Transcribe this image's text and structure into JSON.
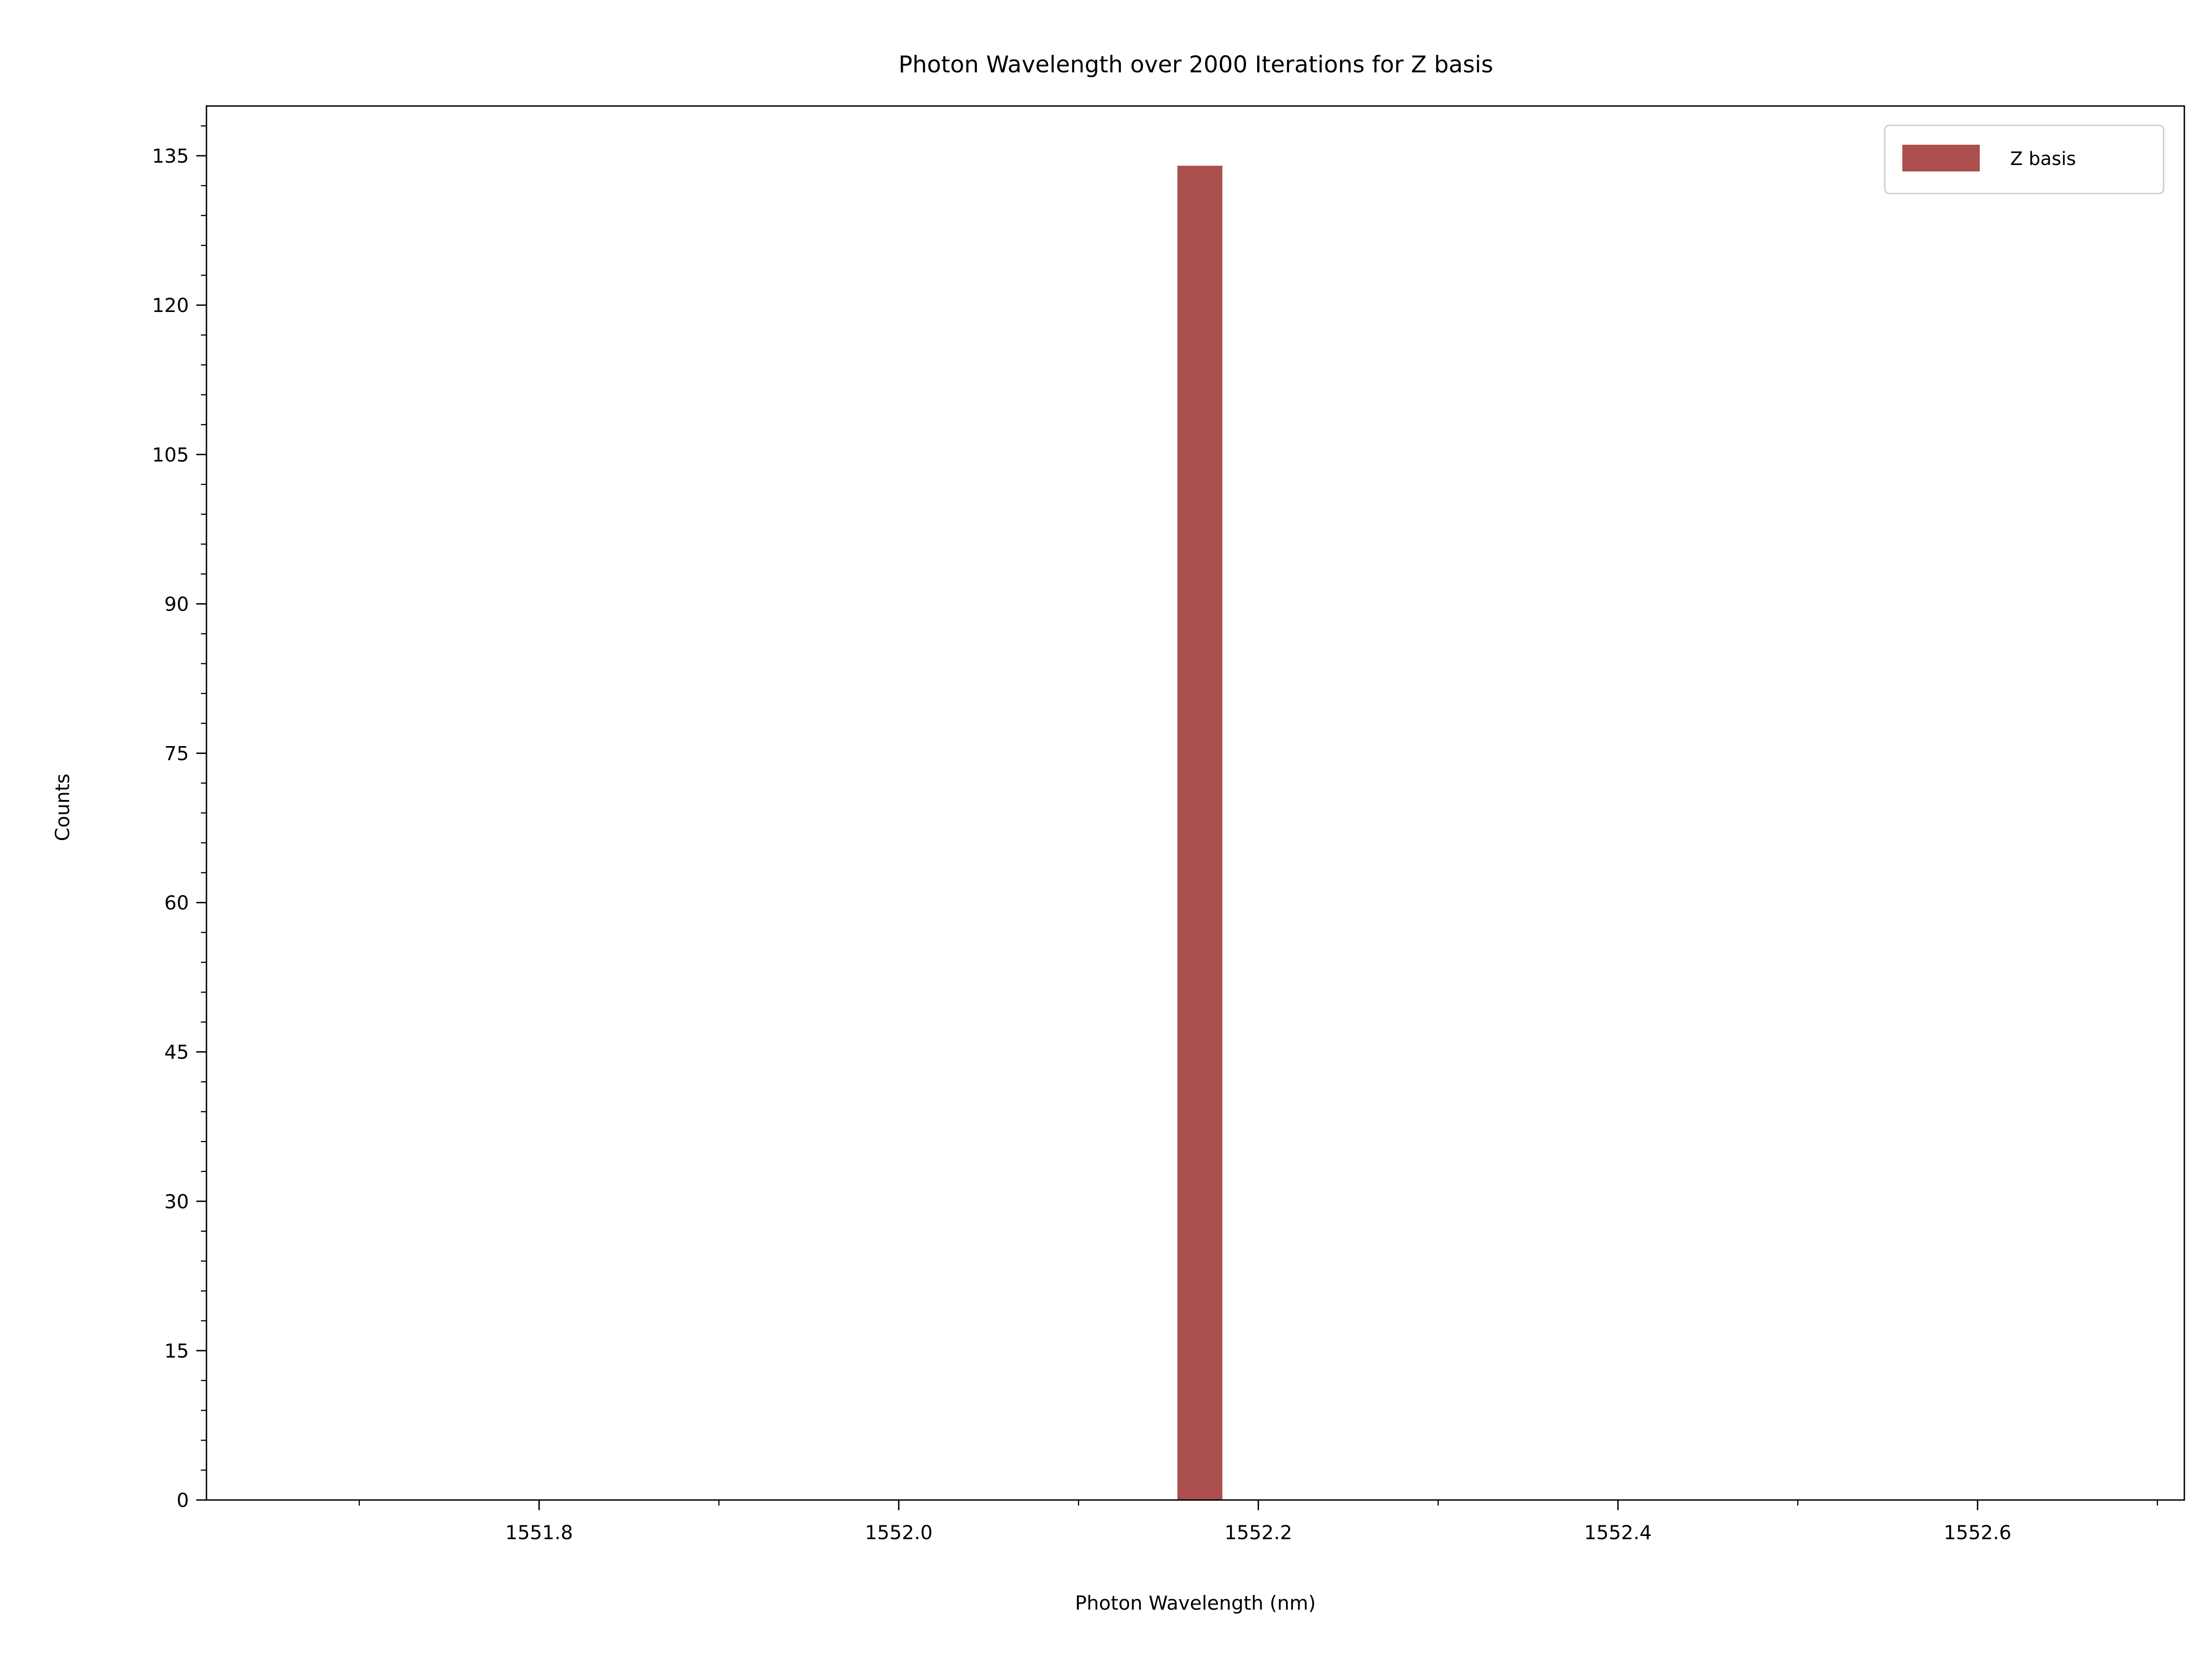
{
  "chart_data": {
    "type": "bar",
    "title": "Photon Wavelength over 2000 Iterations for Z basis",
    "xlabel": "Photon Wavelength (nm)",
    "ylabel": "Counts",
    "xlim": [
      1551.615,
      1552.715
    ],
    "ylim": [
      0,
      140
    ],
    "x_ticks": [
      1551.8,
      1552.0,
      1552.2,
      1552.4,
      1552.6
    ],
    "x_tick_labels": [
      "1551.8",
      "1552.0",
      "1552.2",
      "1552.4",
      "1552.6"
    ],
    "y_ticks": [
      0,
      15,
      30,
      45,
      60,
      75,
      90,
      105,
      120,
      135
    ],
    "y_tick_labels": [
      "0",
      "15",
      "30",
      "45",
      "60",
      "75",
      "90",
      "105",
      "120",
      "135"
    ],
    "series": [
      {
        "name": "Z basis",
        "color": "#ab4e4e",
        "bins": [
          {
            "x_start": 1552.155,
            "x_end": 1552.18,
            "value": 134
          }
        ]
      }
    ],
    "legend": {
      "position": "top-right"
    },
    "grid": false
  }
}
